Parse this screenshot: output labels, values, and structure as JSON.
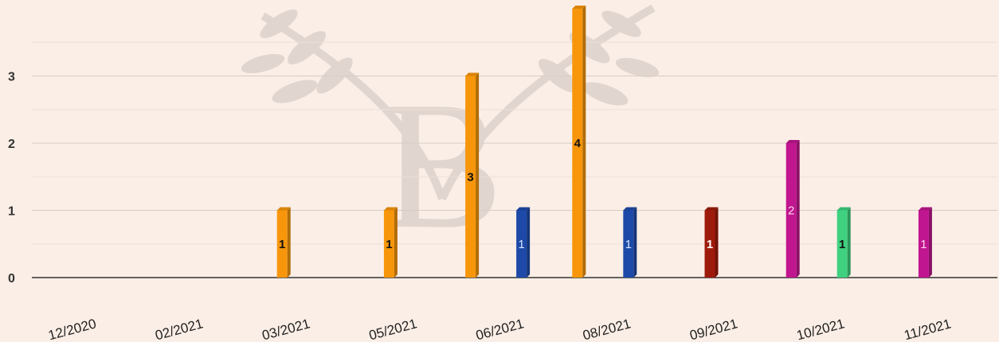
{
  "chart_data": {
    "type": "bar",
    "categories": [
      "12/2020",
      "02/2021",
      "03/2021",
      "05/2021",
      "06/2021",
      "08/2021",
      "09/2021",
      "10/2021",
      "11/2021"
    ],
    "y_ticks": [
      0,
      1,
      2,
      3
    ],
    "ylim": [
      0,
      4
    ],
    "grid": true,
    "bars": [
      {
        "category": "02/2021",
        "value": 1,
        "label": "1",
        "color": "#f7960a",
        "label_color": "#111111"
      },
      {
        "category": "03/2021",
        "value": 1,
        "label": "1",
        "color": "#f7960a",
        "label_color": "#111111"
      },
      {
        "category": "05/2021",
        "value": 3,
        "label": "3",
        "color": "#f7960a",
        "label_color": "#111111"
      },
      {
        "category": "05/2021",
        "value": 1,
        "label": "1",
        "color": "#1d4aa8",
        "label_color": "#d8e4ff"
      },
      {
        "category": "06/2021",
        "value": 4,
        "label": "4",
        "color": "#f7960a",
        "label_color": "#111111"
      },
      {
        "category": "06/2021",
        "value": 1,
        "label": "1",
        "color": "#1d4aa8",
        "label_color": "#d8e4ff"
      },
      {
        "category": "08/2021",
        "value": 1,
        "label": "1",
        "color": "#9e1b0b",
        "label_color": "#ffffff"
      },
      {
        "category": "09/2021",
        "value": 2,
        "label": "2",
        "color": "#c0168f",
        "label_color": "#ffd6f0"
      },
      {
        "category": "09/2021",
        "value": 1,
        "label": "1",
        "color": "#3fd17f",
        "label_color": "#111111"
      },
      {
        "category": "10/2021",
        "value": 1,
        "label": "1",
        "color": "#c0168f",
        "label_color": "#ffd6f0"
      },
      {
        "category": "11/2021",
        "value": 1,
        "label": "1",
        "color": "#f7960a",
        "label_color": "#111111"
      }
    ]
  }
}
